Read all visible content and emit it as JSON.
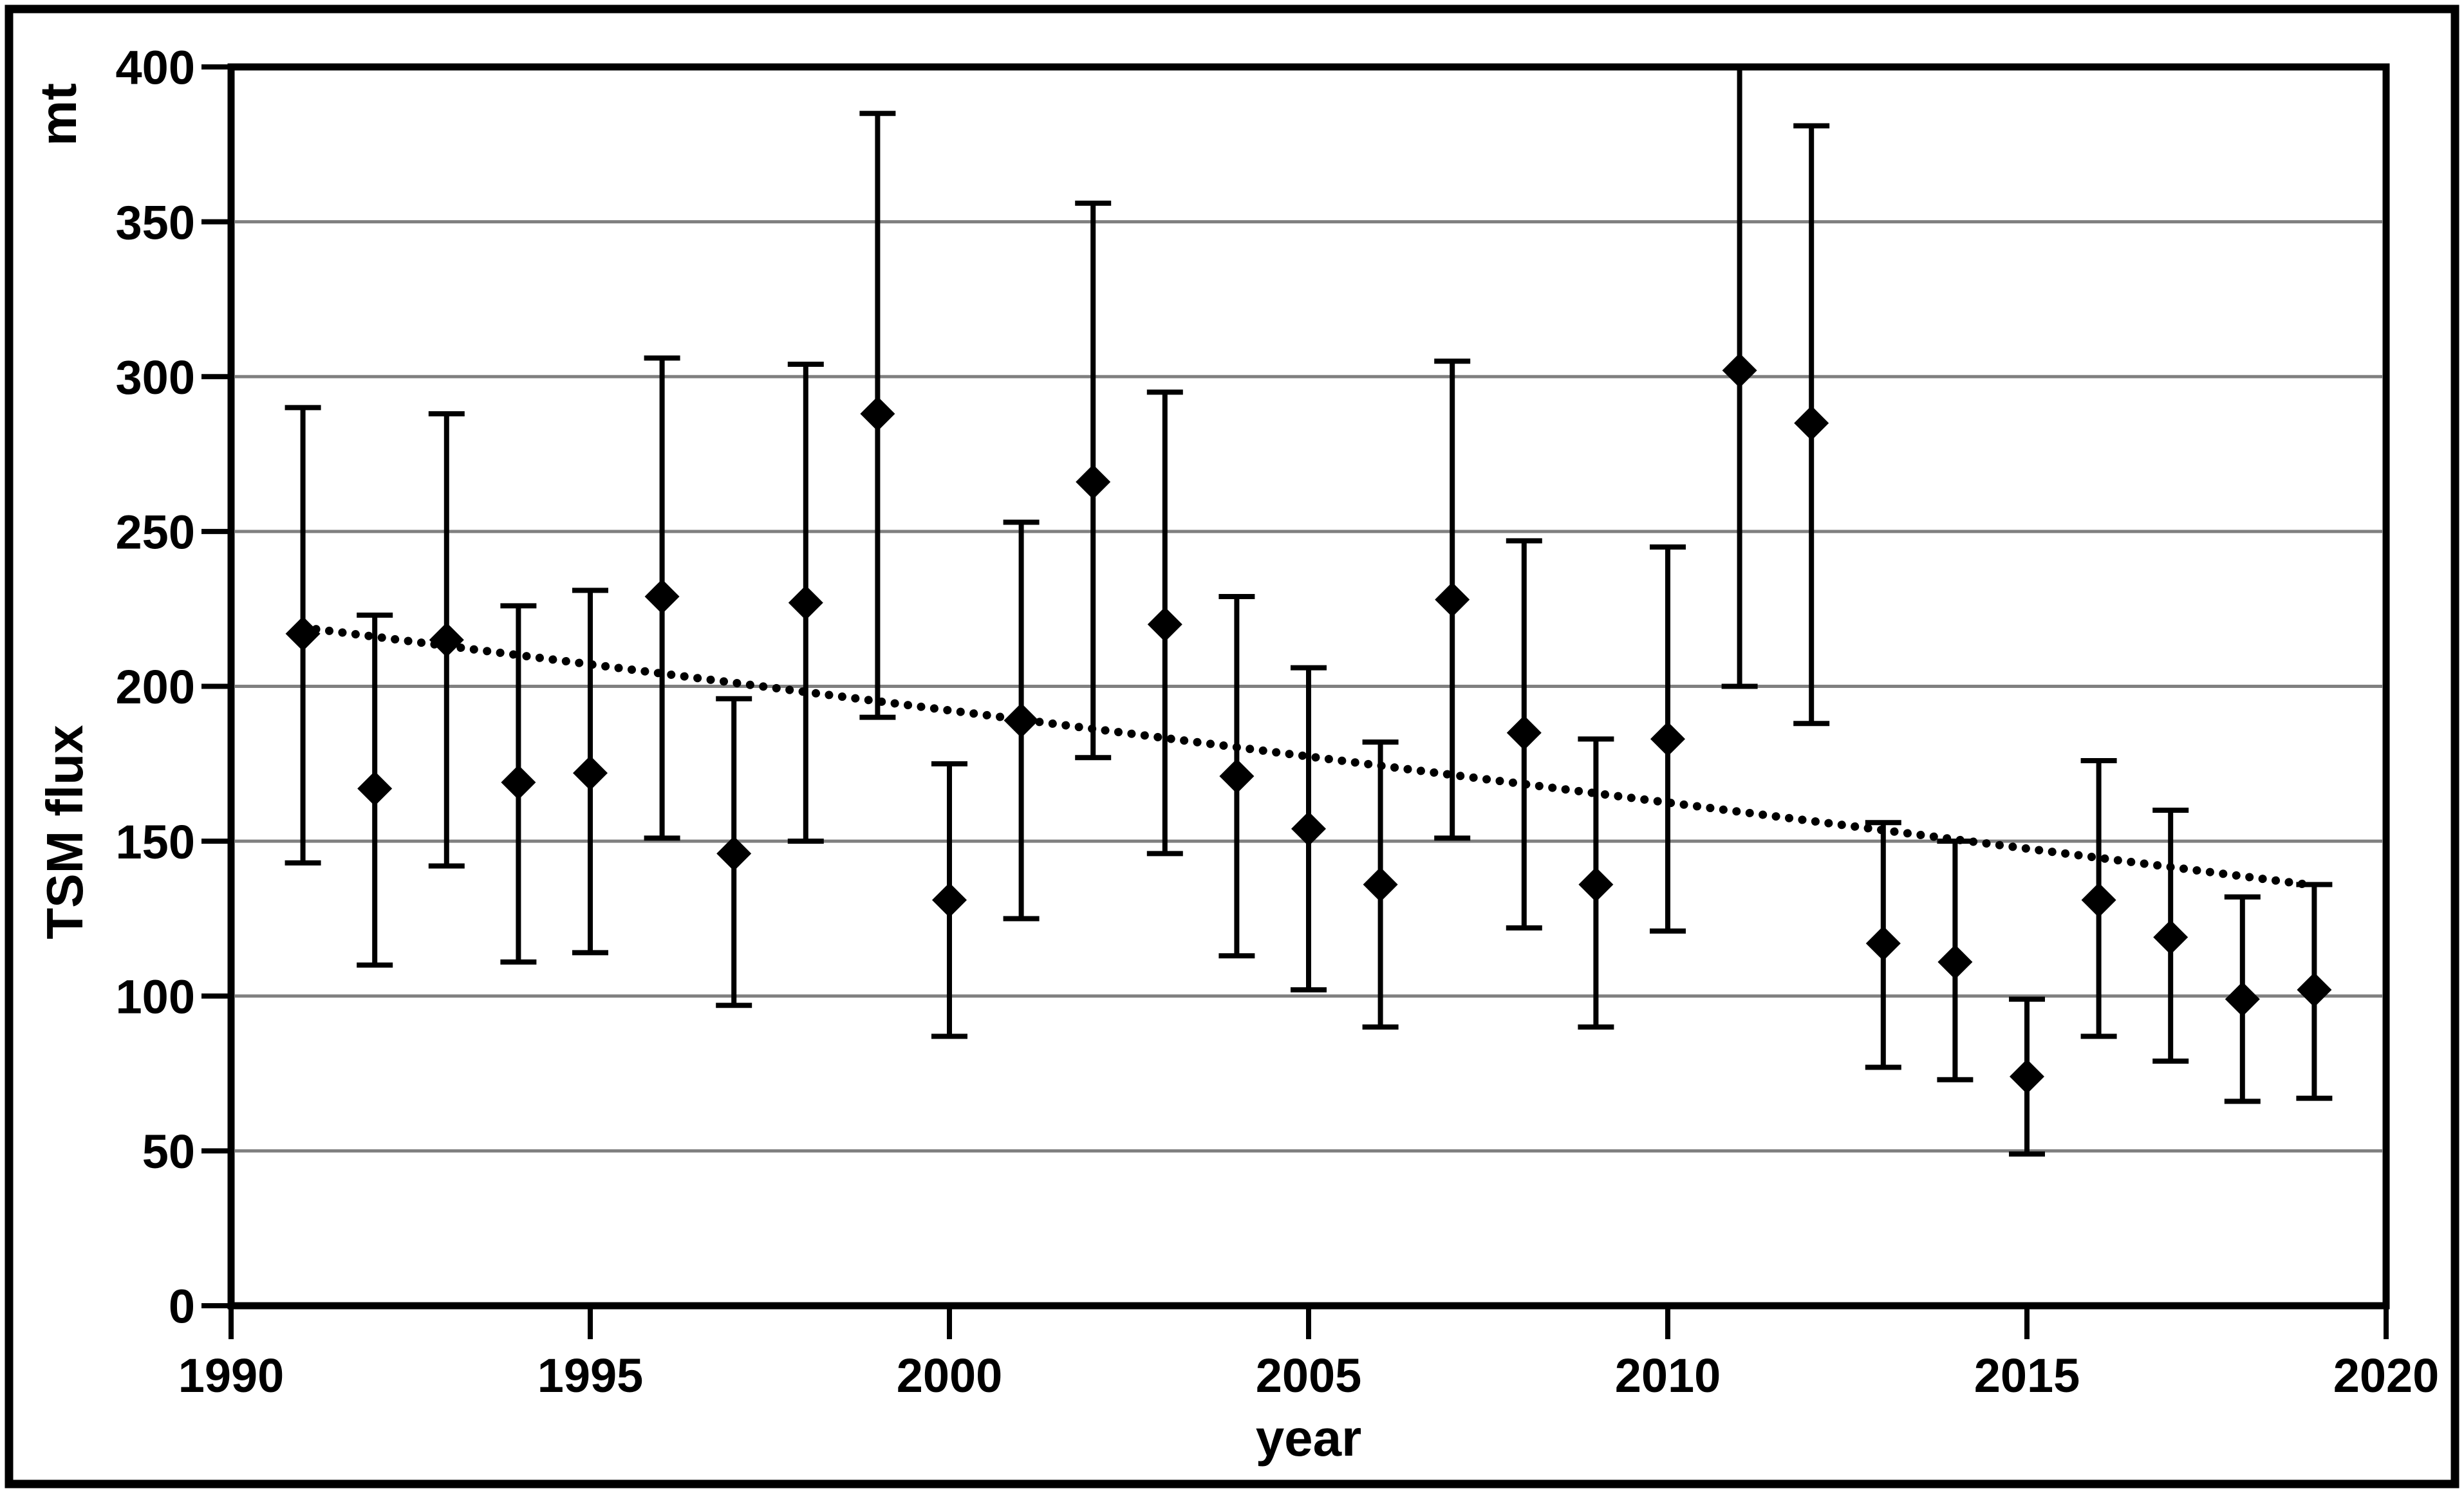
{
  "figure": {
    "background": "#ffffff",
    "border_color": "#000000"
  },
  "colors": {
    "data": "#000000",
    "grid": "#808080",
    "axis": "#000000",
    "trend": "#000000"
  },
  "chart_data": {
    "type": "scatter",
    "title": "",
    "xlabel": "year",
    "ylabel": "TSM flux",
    "y_unit_label": "mt",
    "xlim": [
      1990,
      2020
    ],
    "ylim": [
      0,
      400
    ],
    "x_ticks": [
      1990,
      1995,
      2000,
      2005,
      2010,
      2015,
      2020
    ],
    "y_ticks": [
      0,
      50,
      100,
      150,
      200,
      250,
      300,
      350,
      400
    ],
    "grid": "horizontal",
    "legend_position": "none",
    "marker_style": "filled-diamond-with-error-bars",
    "points": [
      {
        "year": 1991,
        "value": 217,
        "ci_low": 143,
        "ci_high": 290
      },
      {
        "year": 1992,
        "value": 167,
        "ci_low": 110,
        "ci_high": 223
      },
      {
        "year": 1993,
        "value": 215,
        "ci_low": 142,
        "ci_high": 288
      },
      {
        "year": 1994,
        "value": 169,
        "ci_low": 111,
        "ci_high": 226
      },
      {
        "year": 1995,
        "value": 172,
        "ci_low": 114,
        "ci_high": 231
      },
      {
        "year": 1996,
        "value": 229,
        "ci_low": 151,
        "ci_high": 306
      },
      {
        "year": 1997,
        "value": 146,
        "ci_low": 97,
        "ci_high": 196
      },
      {
        "year": 1998,
        "value": 227,
        "ci_low": 150,
        "ci_high": 304
      },
      {
        "year": 1999,
        "value": 288,
        "ci_low": 190,
        "ci_high": 385
      },
      {
        "year": 2000,
        "value": 131,
        "ci_low": 87,
        "ci_high": 175
      },
      {
        "year": 2001,
        "value": 189,
        "ci_low": 125,
        "ci_high": 253
      },
      {
        "year": 2002,
        "value": 266,
        "ci_low": 177,
        "ci_high": 356
      },
      {
        "year": 2003,
        "value": 220,
        "ci_low": 146,
        "ci_high": 295
      },
      {
        "year": 2004,
        "value": 171,
        "ci_low": 113,
        "ci_high": 229
      },
      {
        "year": 2005,
        "value": 154,
        "ci_low": 102,
        "ci_high": 206
      },
      {
        "year": 2006,
        "value": 136,
        "ci_low": 90,
        "ci_high": 182
      },
      {
        "year": 2007,
        "value": 228,
        "ci_low": 151,
        "ci_high": 305
      },
      {
        "year": 2008,
        "value": 185,
        "ci_low": 122,
        "ci_high": 247
      },
      {
        "year": 2009,
        "value": 136,
        "ci_low": 90,
        "ci_high": 183
      },
      {
        "year": 2010,
        "value": 183,
        "ci_low": 121,
        "ci_high": 245
      },
      {
        "year": 2011,
        "value": 302,
        "ci_low": 200,
        "ci_high": 404
      },
      {
        "year": 2012,
        "value": 285,
        "ci_low": 188,
        "ci_high": 381
      },
      {
        "year": 2013,
        "value": 117,
        "ci_low": 77,
        "ci_high": 156
      },
      {
        "year": 2014,
        "value": 111,
        "ci_low": 73,
        "ci_high": 150
      },
      {
        "year": 2015,
        "value": 74,
        "ci_low": 49,
        "ci_high": 99
      },
      {
        "year": 2016,
        "value": 131,
        "ci_low": 87,
        "ci_high": 176
      },
      {
        "year": 2017,
        "value": 119,
        "ci_low": 79,
        "ci_high": 160
      },
      {
        "year": 2018,
        "value": 99,
        "ci_low": 66,
        "ci_high": 132
      },
      {
        "year": 2019,
        "value": 102,
        "ci_low": 67,
        "ci_high": 136
      }
    ],
    "trend_line": {
      "style": "dotted",
      "points": [
        {
          "year": 1991,
          "value": 219
        },
        {
          "year": 2018.9,
          "value": 136
        }
      ]
    }
  }
}
